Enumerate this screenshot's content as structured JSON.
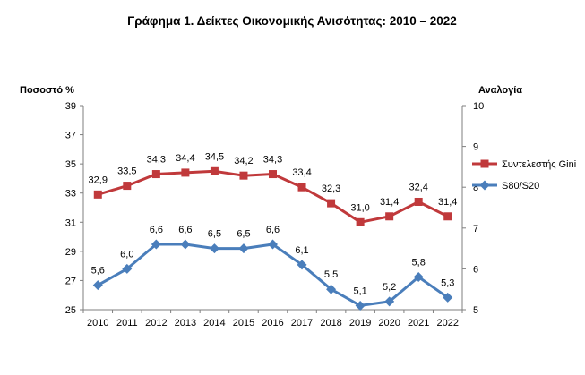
{
  "chart_data": {
    "type": "line",
    "title": "Γράφημα 1. Δείκτες Οικονομικής Ανισότητας: 2010 – 2022",
    "ylabel_left": "Ποσοστό %",
    "ylabel_right": "Αναλογία",
    "x": [
      "2010",
      "2011",
      "2012",
      "2013",
      "2014",
      "2015",
      "2016",
      "2017",
      "2018",
      "2019",
      "2020",
      "2021",
      "2022"
    ],
    "ylim_left": [
      25,
      39
    ],
    "yticks_left": [
      25,
      27,
      29,
      31,
      33,
      35,
      37,
      39
    ],
    "ylim_right": [
      5,
      10
    ],
    "yticks_right": [
      5,
      6,
      7,
      8,
      9,
      10
    ],
    "series": [
      {
        "name": "Συντελεστής Gini",
        "axis": "left",
        "color": "#C0393B",
        "marker": "square",
        "values": [
          32.9,
          33.5,
          34.3,
          34.4,
          34.5,
          34.2,
          34.3,
          33.4,
          32.3,
          31.0,
          31.4,
          32.4,
          31.4
        ],
        "labels": [
          "32,9",
          "33,5",
          "34,3",
          "34,4",
          "34,5",
          "34,2",
          "34,3",
          "33,4",
          "32,3",
          "31,0",
          "31,4",
          "32,4",
          "31,4"
        ]
      },
      {
        "name": "S80/S20",
        "axis": "right",
        "color": "#4A7EBB",
        "marker": "diamond",
        "values": [
          5.6,
          6.0,
          6.6,
          6.6,
          6.5,
          6.5,
          6.6,
          6.1,
          5.5,
          5.1,
          5.2,
          5.8,
          5.3
        ],
        "labels": [
          "5,6",
          "6,0",
          "6,6",
          "6,6",
          "6,5",
          "6,5",
          "6,6",
          "6,1",
          "5,5",
          "5,1",
          "5,2",
          "5,8",
          "5,3"
        ]
      }
    ],
    "grid": false,
    "legend_position": "right"
  }
}
